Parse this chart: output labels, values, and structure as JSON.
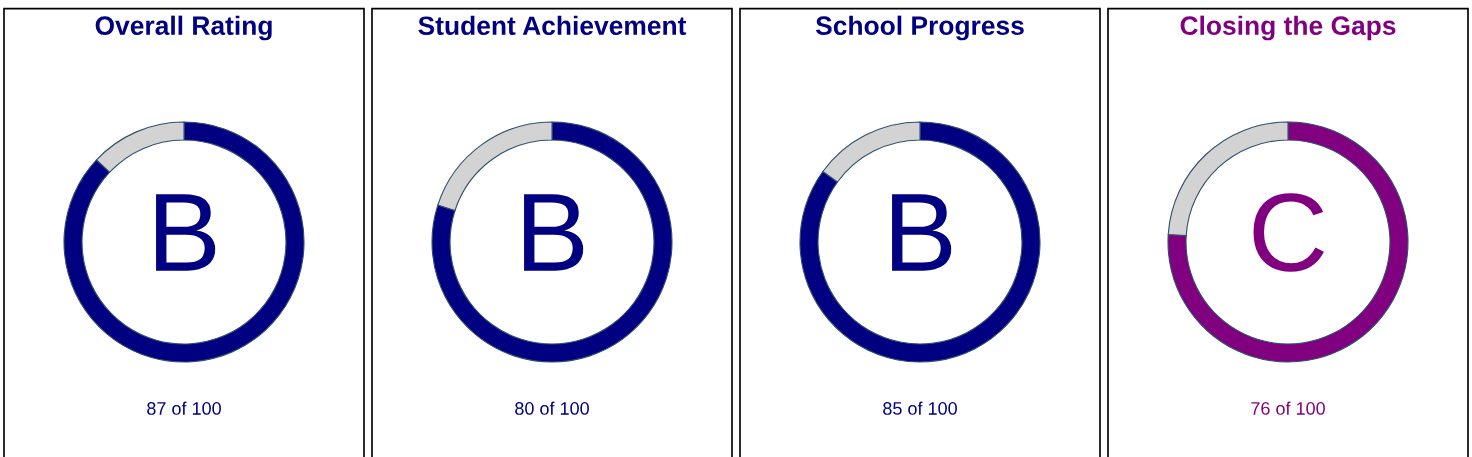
{
  "chart_data": [
    {
      "type": "donut",
      "title": "Overall Rating",
      "categories": [
        null,
        null
      ],
      "values": [
        87,
        13
      ],
      "colors": [
        "#000080",
        "#d3d3d3"
      ],
      "annotations": [
        "B",
        "87 of 100"
      ]
    },
    {
      "type": "donut",
      "title": "Student Achievement",
      "categories": [
        null,
        null
      ],
      "values": [
        80,
        20
      ],
      "colors": [
        "#000080",
        "#d3d3d3"
      ],
      "annotations": [
        "B",
        "80 of 100"
      ]
    },
    {
      "type": "donut",
      "title": "School Progress",
      "categories": [
        null,
        null
      ],
      "values": [
        85,
        15
      ],
      "colors": [
        "#000080",
        "#d3d3d3"
      ],
      "annotations": [
        "B",
        "85 of 100"
      ]
    },
    {
      "type": "donut",
      "title": "Closing the Gaps",
      "categories": [
        null,
        null
      ],
      "values": [
        76,
        24
      ],
      "colors": [
        "#800080",
        "#d3d3d3"
      ],
      "annotations": [
        "C",
        "76 of 100"
      ]
    }
  ]
}
